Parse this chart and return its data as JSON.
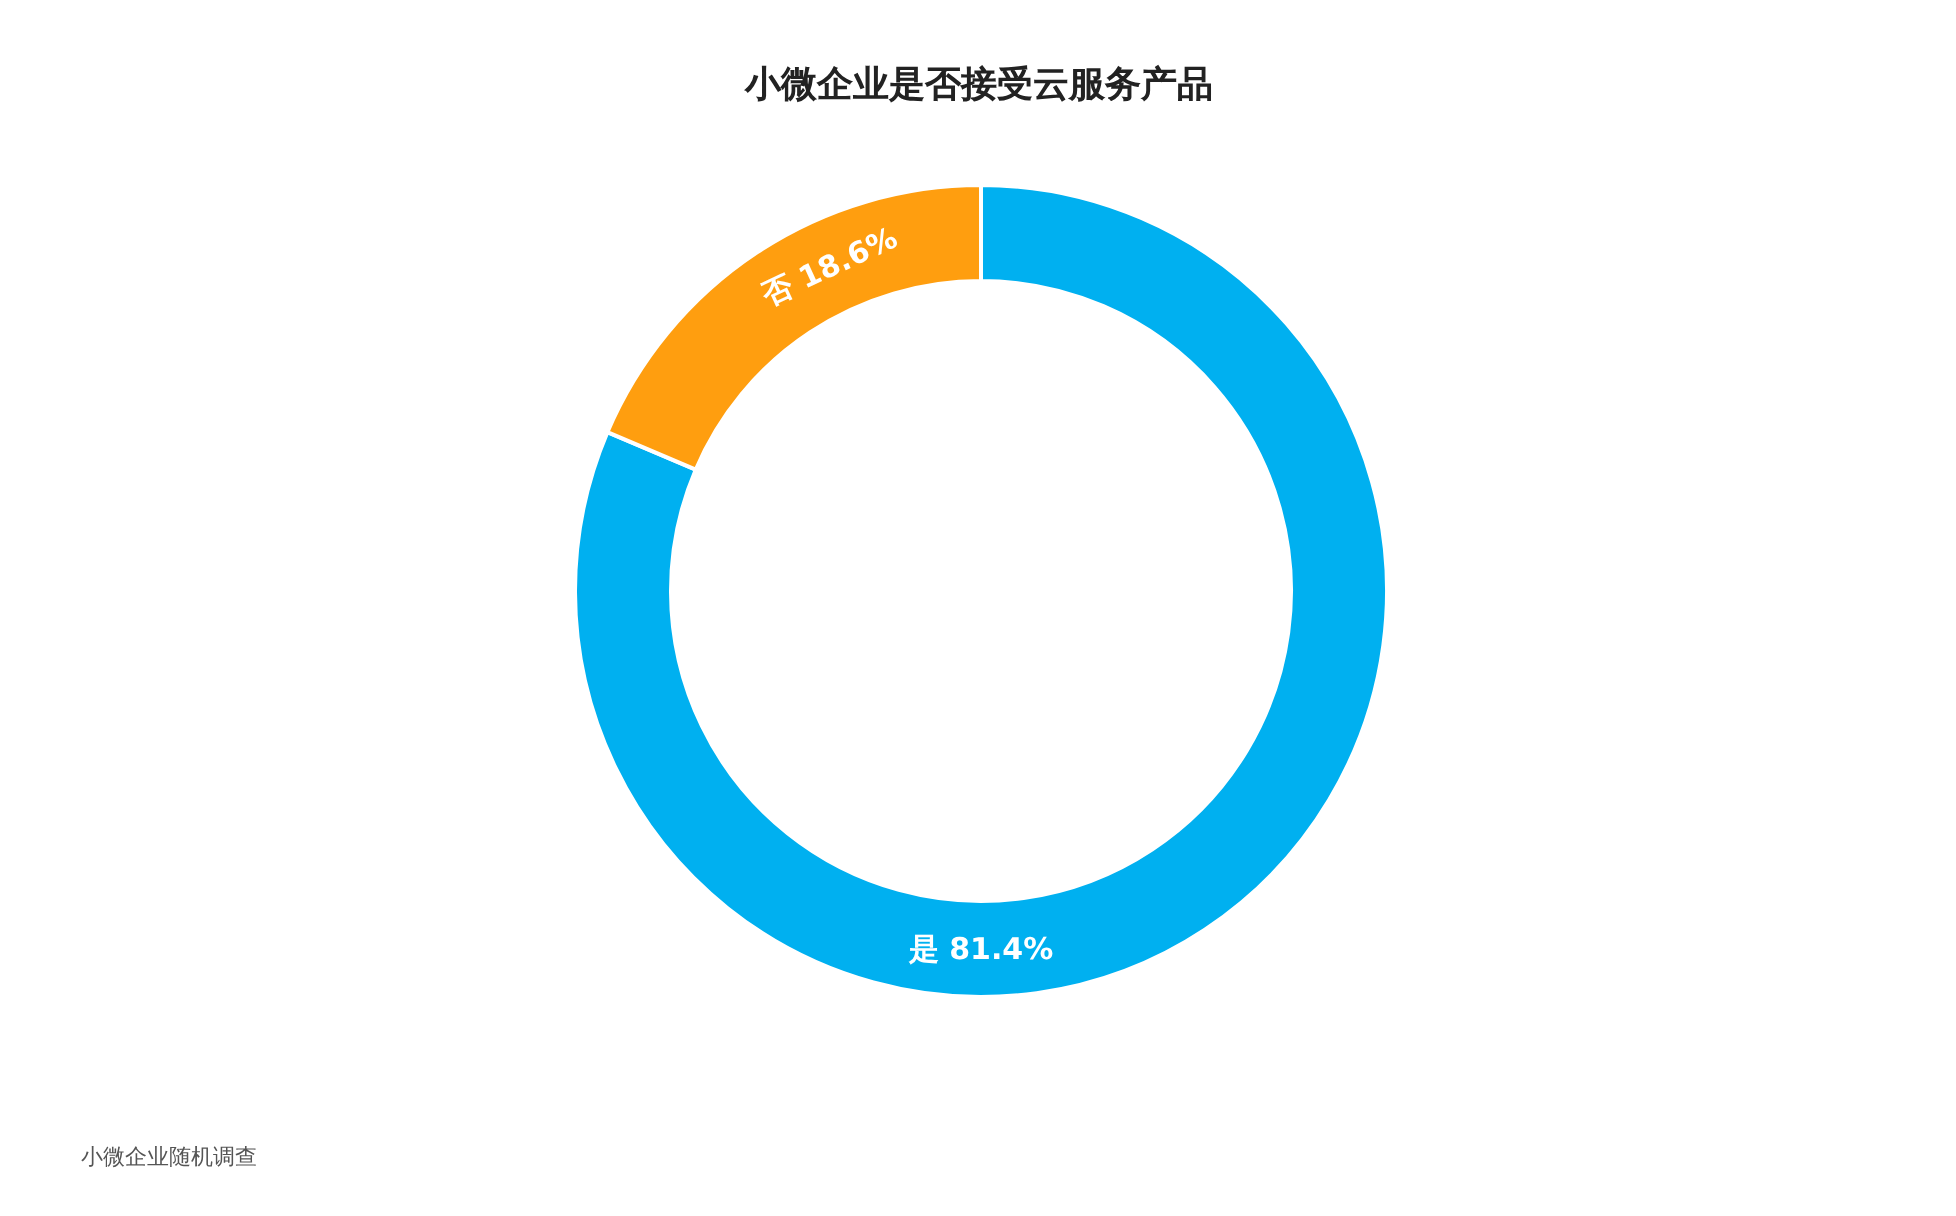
{
  "chart_data": {
    "type": "donut",
    "title": "小微企业是否接受云服务产品",
    "categories": [
      "是",
      "否"
    ],
    "values": [
      81.4,
      18.6
    ],
    "colors": [
      "#00b0f0",
      "#ff9e0f"
    ],
    "value_labels": [
      "81.4%",
      "18.6%"
    ],
    "annotations": [
      "小微企业随机调查"
    ]
  }
}
